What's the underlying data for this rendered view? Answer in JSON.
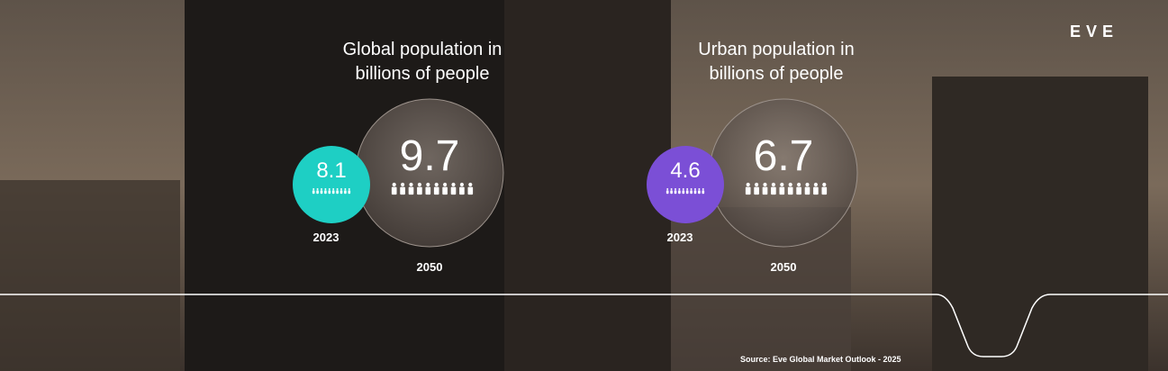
{
  "logo": "EVE",
  "panels": [
    {
      "title": "Global population in billions of people",
      "items": [
        {
          "value": 8.1,
          "year": "2023"
        },
        {
          "value": 9.7,
          "year": "2050"
        }
      ]
    },
    {
      "title": "Urban population in billions of people",
      "items": [
        {
          "value": 4.6,
          "year": "2023"
        },
        {
          "value": 6.7,
          "year": "2050"
        }
      ]
    }
  ],
  "source": "Source: Eve Global Market Outlook - 2025"
}
